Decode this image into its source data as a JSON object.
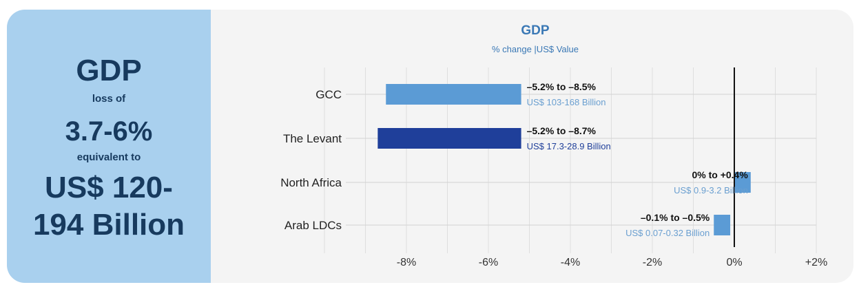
{
  "left_panel": {
    "heading": "GDP",
    "loss_label": "loss of",
    "loss_value": "3.7-6%",
    "equiv_label": "equivalent to",
    "amount_line1": "US$ 120-",
    "amount_line2": "194 Billion"
  },
  "chart_data": {
    "type": "bar",
    "orientation": "horizontal",
    "title": "GDP",
    "subtitle": "% change |US$ Value",
    "xlim": [
      -10,
      2
    ],
    "ticks": [
      "-8%",
      "-6%",
      "-4%",
      "-2%",
      "0%",
      "+2%"
    ],
    "tick_values": [
      -8,
      -6,
      -4,
      -2,
      0,
      2
    ],
    "grid": true,
    "categories": [
      "GCC",
      "The Levant",
      "North Africa",
      "Arab LDCs"
    ],
    "ranges": [
      [
        -5.2,
        -8.5
      ],
      [
        -5.2,
        -8.7
      ],
      [
        0,
        0.4
      ],
      [
        -0.1,
        -0.5
      ]
    ],
    "range_labels": [
      "–5.2% to –8.5%",
      "–5.2% to –8.7%",
      "0% to +0.4%",
      "–0.1% to –0.5%"
    ],
    "usd_labels": [
      "US$ 103-168 Billion",
      "US$ 17.3-28.9 Billion",
      "US$ 0.9-3.2 Billion",
      "US$ 0.07-0.32 Billion"
    ],
    "bar_colors": [
      "#5b9bd5",
      "#1f3f9a",
      "#5b9bd5",
      "#5b9bd5"
    ],
    "usd_colors": [
      "#6a9fd0",
      "#1f3f9a",
      "#6a9fd0",
      "#6a9fd0"
    ]
  }
}
